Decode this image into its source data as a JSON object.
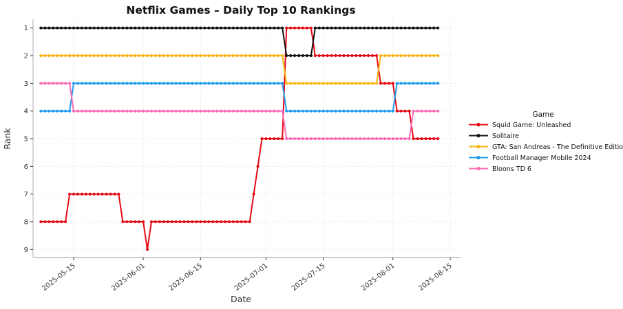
{
  "chart_data": {
    "type": "line",
    "title": "Netflix Games – Daily Top 10 Rankings",
    "xlabel": "Date",
    "ylabel": "Rank",
    "x_start": "2025-05-07",
    "x_end": "2025-08-12",
    "x_tick_labels": [
      "2025-05-15",
      "2025-06-01",
      "2025-06-15",
      "2025-07-01",
      "2025-07-15",
      "2025-08-01",
      "2025-08-15"
    ],
    "y_ticks": [
      1,
      2,
      3,
      4,
      5,
      6,
      7,
      8,
      9
    ],
    "y_axis_inverted": true,
    "grid": true,
    "marker": "circle",
    "legend": {
      "title": "Game",
      "position": "right"
    },
    "colors": {
      "grid": "#e4e4e4",
      "spine": "#c4c4c4",
      "tick": "#333333",
      "text": "#333333",
      "title": "#111111"
    },
    "series": [
      {
        "name": "Squid Game: Unleashed",
        "color": "#E50914",
        "rank_segments": [
          [
            "2025-05-07",
            "2025-05-13",
            8
          ],
          [
            "2025-05-14",
            "2025-05-26",
            7
          ],
          [
            "2025-05-27",
            "2025-06-01",
            8
          ],
          [
            "2025-06-02",
            "2025-06-02",
            9
          ],
          [
            "2025-06-03",
            "2025-06-27",
            8
          ],
          [
            "2025-06-28",
            "2025-06-28",
            7
          ],
          [
            "2025-06-29",
            "2025-06-29",
            6
          ],
          [
            "2025-06-30",
            "2025-07-05",
            5
          ],
          [
            "2025-07-06",
            "2025-07-12",
            1
          ],
          [
            "2025-07-13",
            "2025-07-28",
            2
          ],
          [
            "2025-07-29",
            "2025-08-01",
            3
          ],
          [
            "2025-08-02",
            "2025-08-05",
            4
          ],
          [
            "2025-08-06",
            "2025-08-12",
            5
          ]
        ]
      },
      {
        "name": "Solitaire",
        "color": "#111111",
        "rank_segments": [
          [
            "2025-05-07",
            "2025-07-05",
            1
          ],
          [
            "2025-07-06",
            "2025-07-12",
            2
          ],
          [
            "2025-07-13",
            "2025-08-12",
            1
          ]
        ]
      },
      {
        "name": "GTA: San Andreas - The Definitive Edition",
        "color": "#F6B511",
        "rank_segments": [
          [
            "2025-05-07",
            "2025-07-05",
            2
          ],
          [
            "2025-07-06",
            "2025-07-28",
            3
          ],
          [
            "2025-07-29",
            "2025-08-12",
            2
          ]
        ]
      },
      {
        "name": "Football Manager Mobile 2024",
        "color": "#1E9BF0",
        "rank_segments": [
          [
            "2025-05-07",
            "2025-05-14",
            4
          ],
          [
            "2025-05-15",
            "2025-07-05",
            3
          ],
          [
            "2025-07-06",
            "2025-08-01",
            4
          ],
          [
            "2025-08-02",
            "2025-08-12",
            3
          ]
        ]
      },
      {
        "name": "Bloons TD 6",
        "color": "#FB6BB5",
        "rank_segments": [
          [
            "2025-05-07",
            "2025-05-14",
            3
          ],
          [
            "2025-05-15",
            "2025-07-05",
            4
          ],
          [
            "2025-07-06",
            "2025-08-05",
            5
          ],
          [
            "2025-08-06",
            "2025-08-12",
            4
          ]
        ]
      }
    ]
  }
}
